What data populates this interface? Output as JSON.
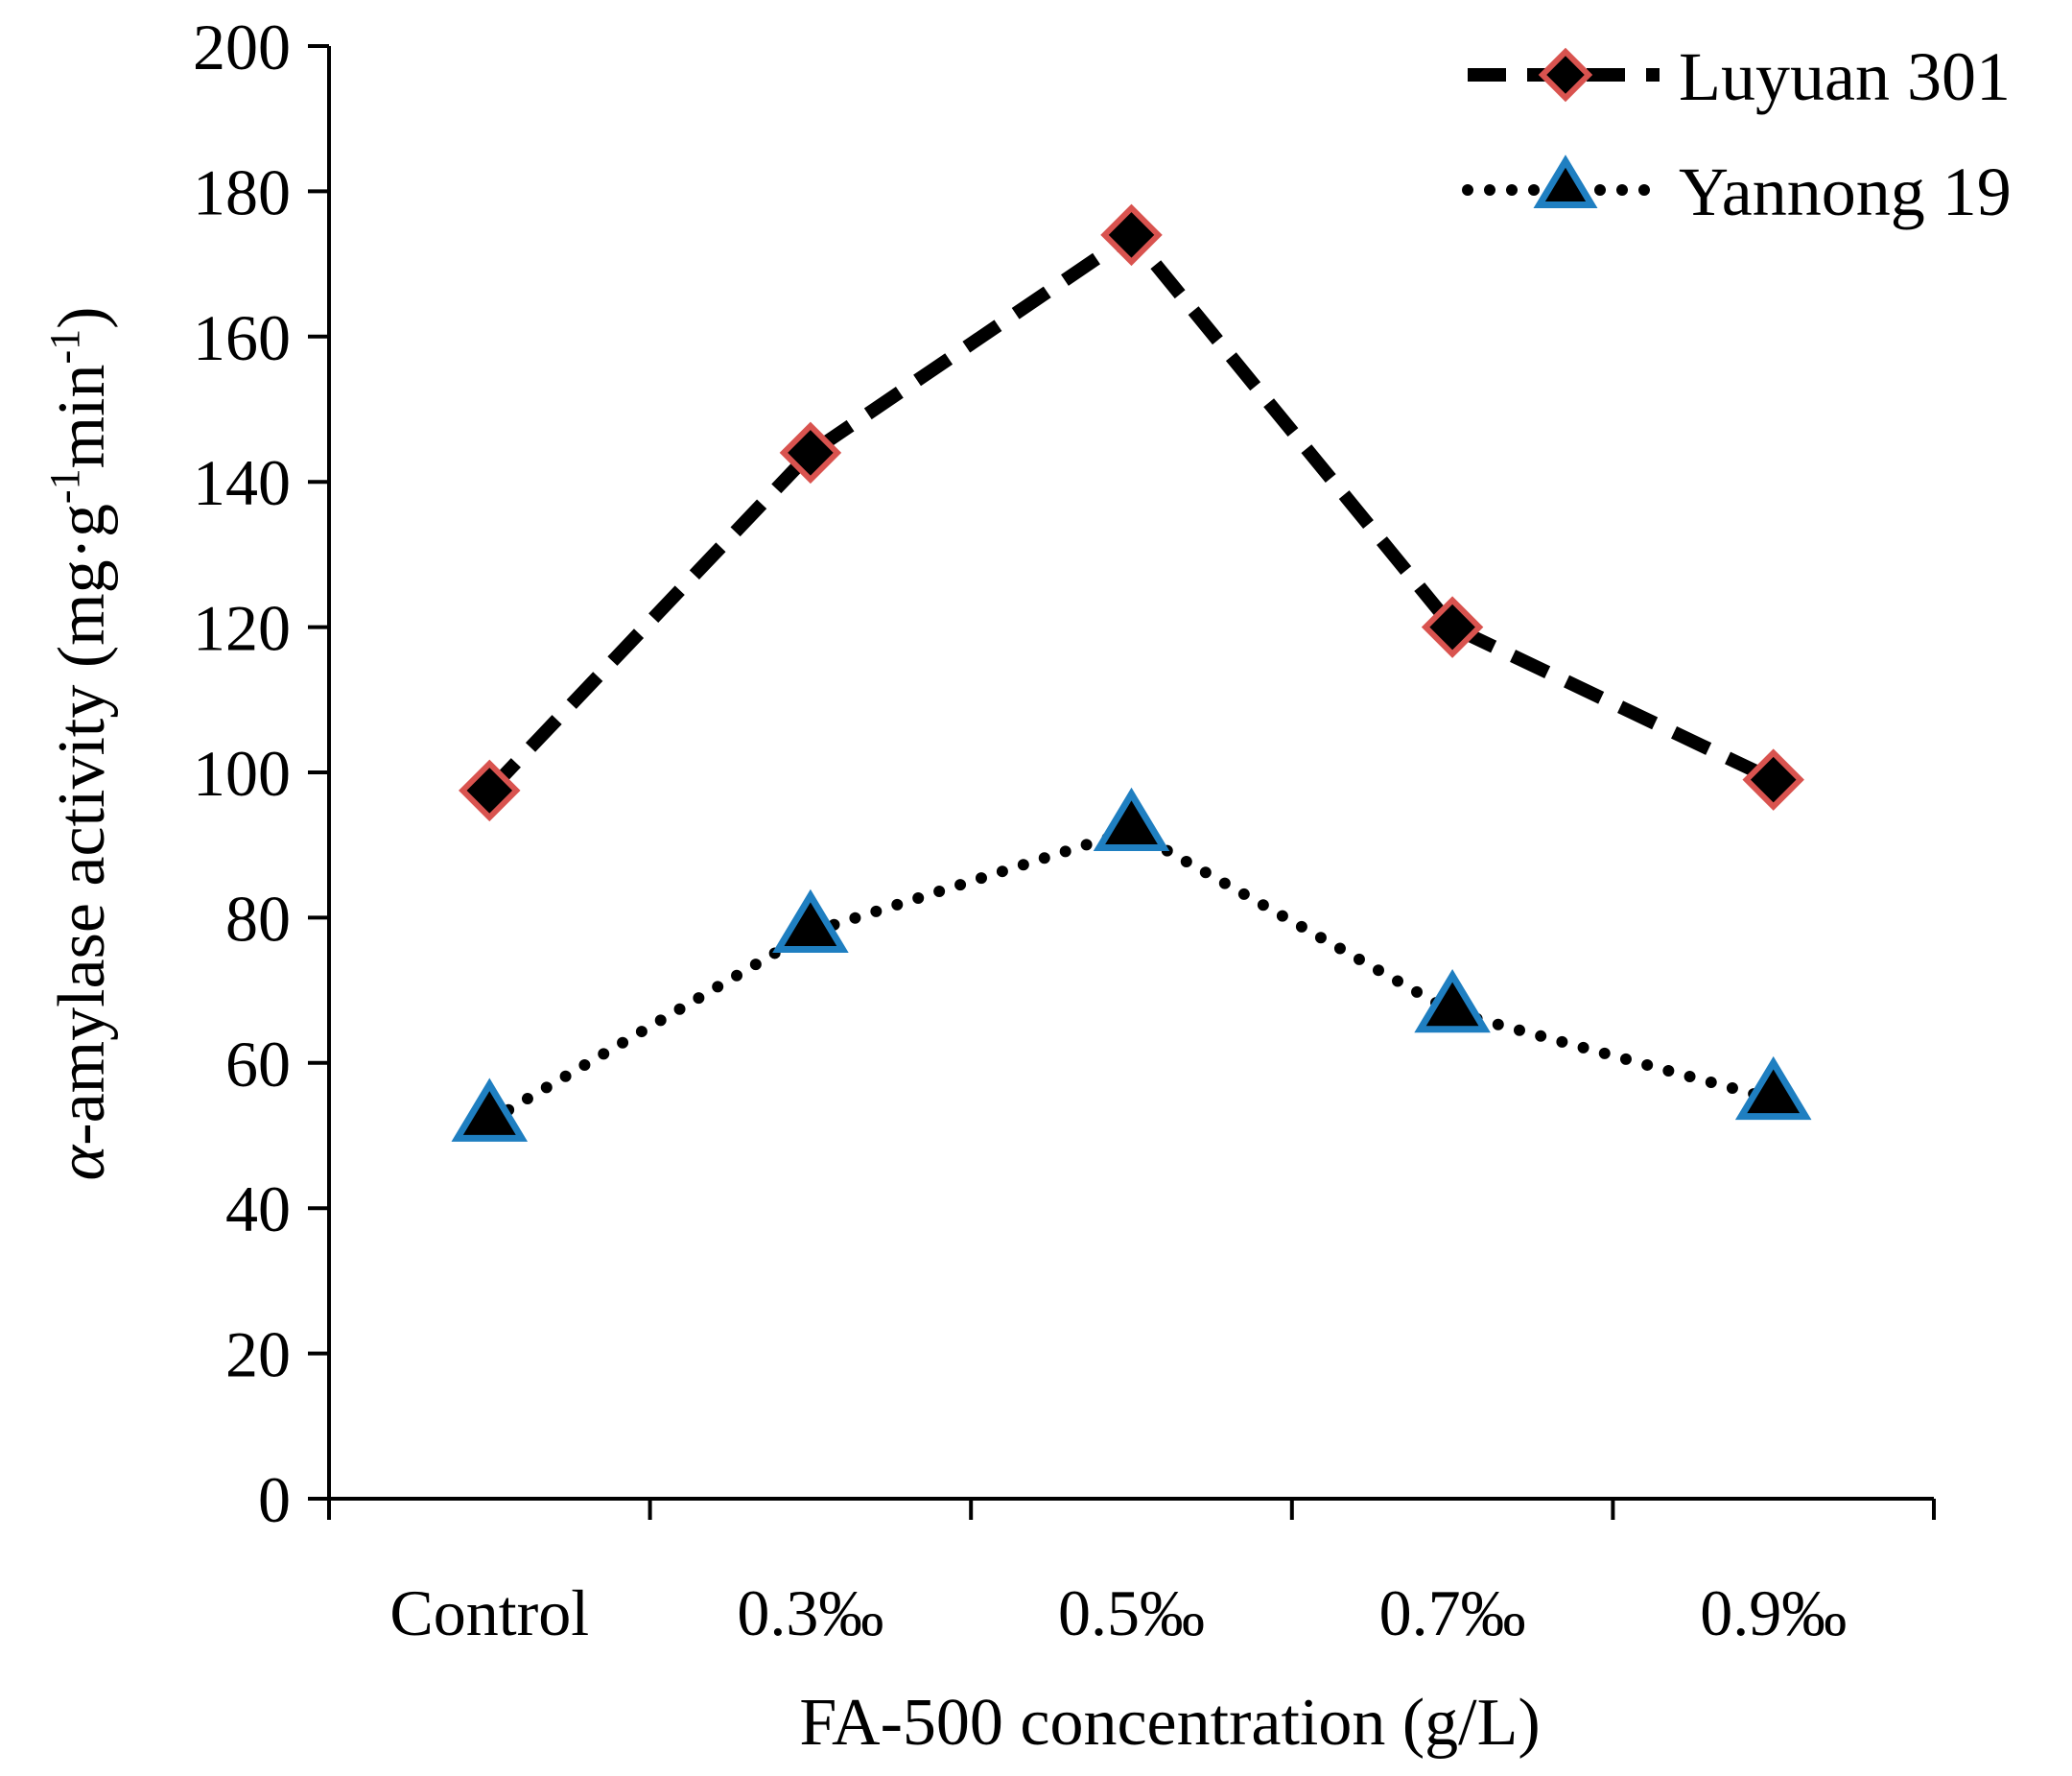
{
  "chart_data": {
    "type": "line",
    "title": "",
    "xlabel": "FA-500 concentration (g/L)",
    "ylabel": {
      "symbol": "α",
      "text": "-amylase activity (mg·g",
      "sup1": "-1",
      "mid": "min",
      "sup2": "-1",
      "close": ")"
    },
    "categories": [
      "Control",
      "0.3‰",
      "0.5‰",
      "0.7‰",
      "0.9‰"
    ],
    "ylim": [
      0,
      200
    ],
    "yticks": [
      0,
      20,
      40,
      60,
      80,
      100,
      120,
      140,
      160,
      180,
      200
    ],
    "grid": false,
    "legend_position": "top-right",
    "series": [
      {
        "name": "Luyuan 301",
        "values": [
          97.5,
          144,
          174,
          120,
          99
        ],
        "marker": "diamond",
        "line_style": "dashed",
        "line_color": "#000000",
        "marker_fill": "#000000",
        "marker_edge": "#d9534f"
      },
      {
        "name": "Yannong 19",
        "values": [
          52,
          78,
          92,
          67,
          55
        ],
        "marker": "triangle",
        "line_style": "dotted",
        "line_color": "#000000",
        "marker_fill": "#000000",
        "marker_edge": "#1f7fc1"
      }
    ]
  }
}
